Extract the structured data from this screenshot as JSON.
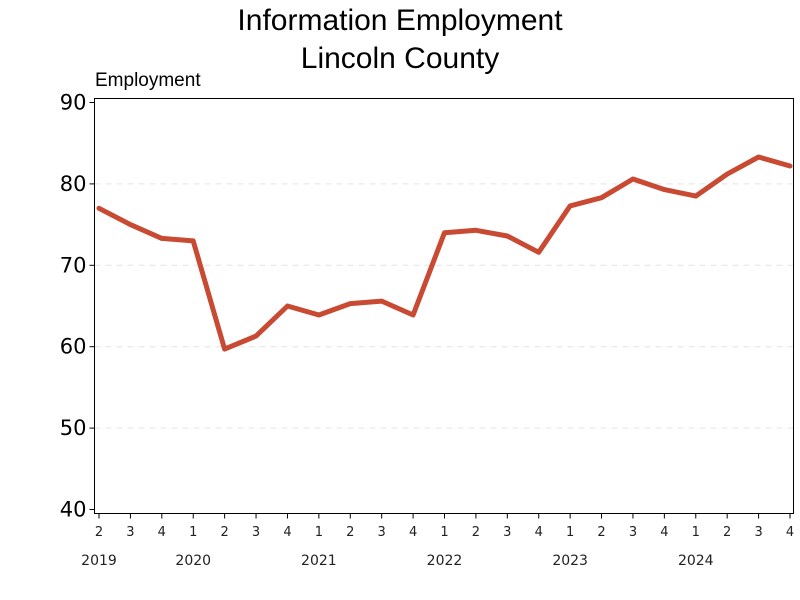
{
  "chart_data": {
    "type": "line",
    "title": [
      "Information Employment",
      "Lincoln County"
    ],
    "ylabel": "Employment",
    "xlabel": "",
    "ylim": [
      40,
      90
    ],
    "yticks": [
      40,
      50,
      60,
      70,
      80,
      90
    ],
    "grid": "horizontal dashed",
    "legend": "none",
    "line_color": "#C94A32",
    "categories": [
      "2",
      "3",
      "4",
      "1",
      "2",
      "3",
      "4",
      "1",
      "2",
      "3",
      "4",
      "1",
      "2",
      "3",
      "4",
      "1",
      "2",
      "3",
      "4",
      "1",
      "2",
      "3",
      "4"
    ],
    "years": [
      {
        "label": "2019",
        "start_index": 0
      },
      {
        "label": "2020",
        "start_index": 3
      },
      {
        "label": "2021",
        "start_index": 7
      },
      {
        "label": "2022",
        "start_index": 11
      },
      {
        "label": "2023",
        "start_index": 15
      },
      {
        "label": "2024",
        "start_index": 19
      }
    ],
    "series": [
      {
        "values": [
          77.0,
          75.0,
          73.3,
          73.0,
          59.7,
          61.3,
          65.0,
          63.9,
          65.3,
          65.6,
          63.9,
          74.0,
          74.3,
          73.6,
          71.6,
          77.3,
          78.3,
          80.6,
          79.3,
          78.5,
          81.2,
          83.3,
          82.2
        ]
      }
    ]
  }
}
